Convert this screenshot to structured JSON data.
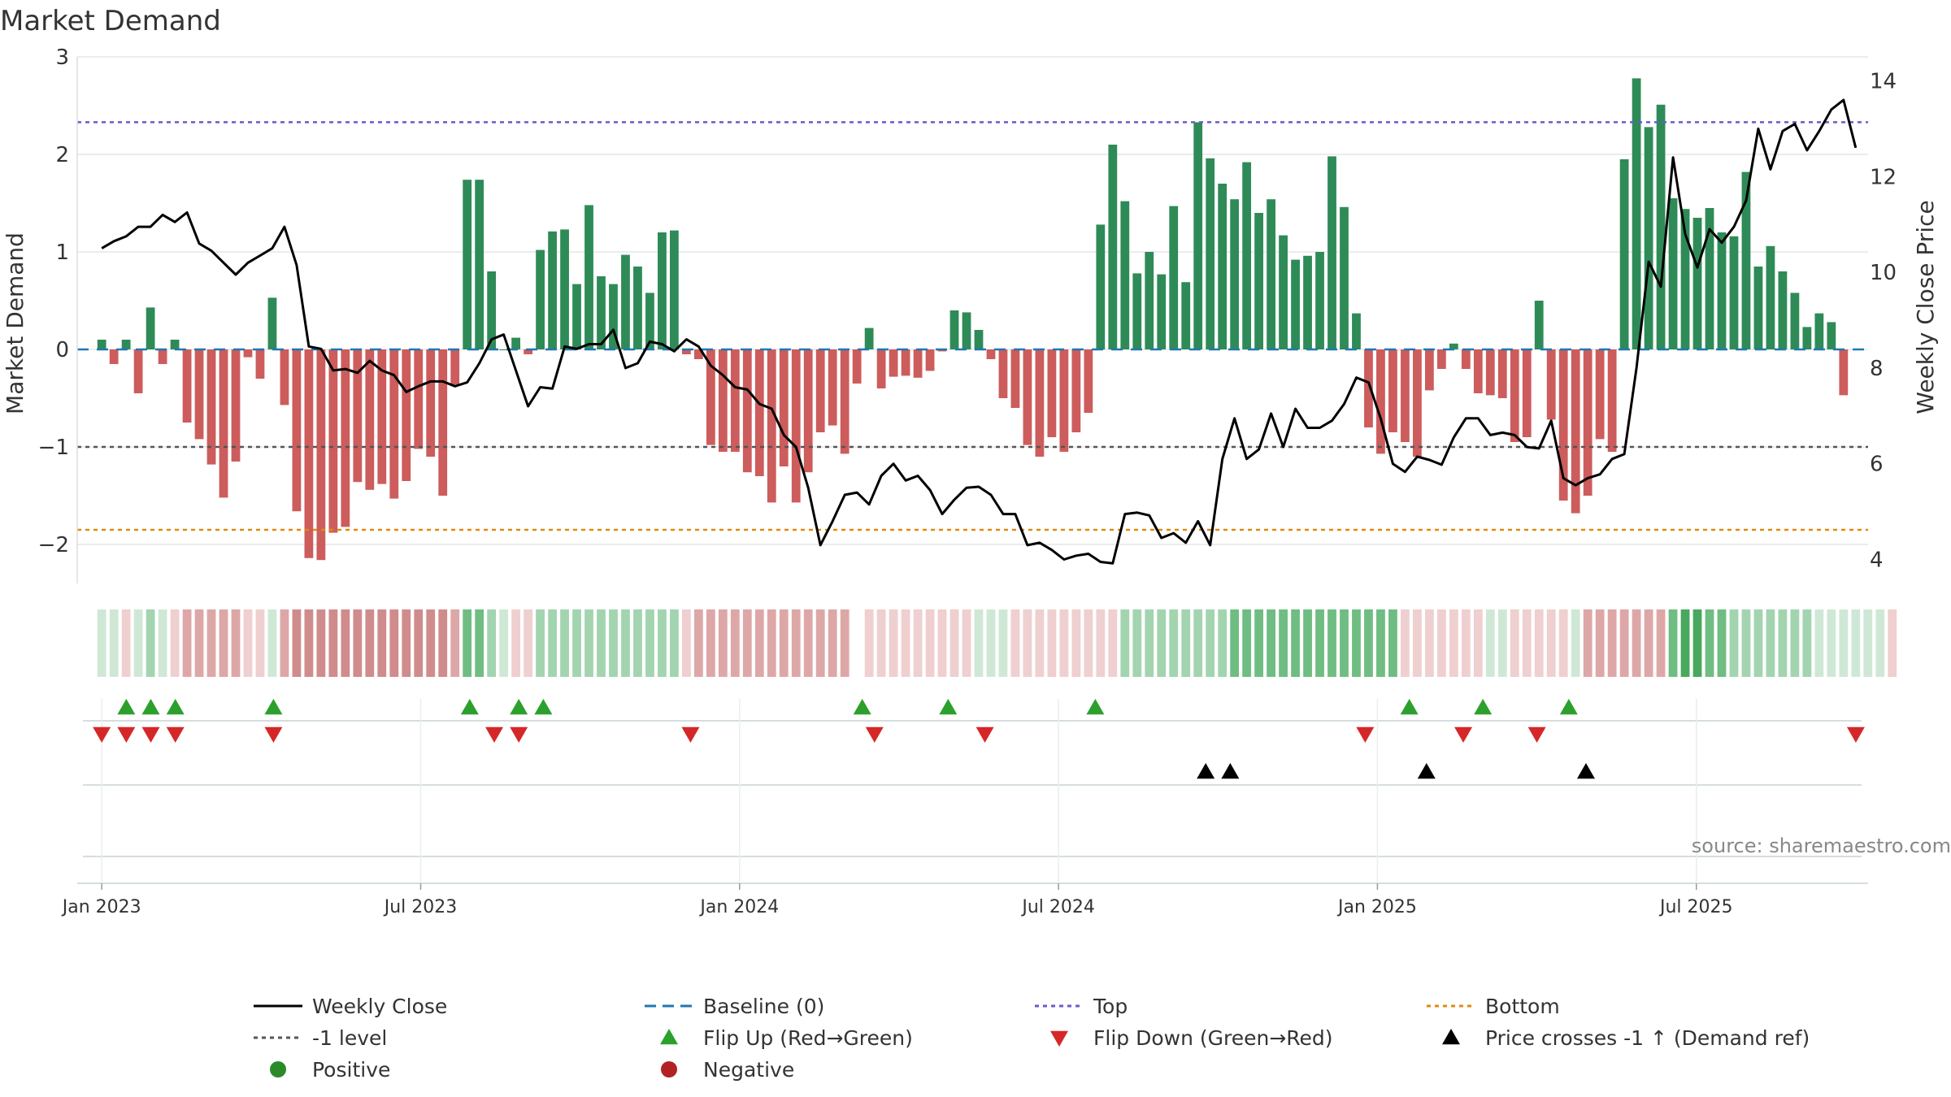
{
  "chart_data": {
    "type": "bar",
    "title": "Market Demand",
    "ylabel": "Market Demand",
    "ylabel_right": "Weekly Close Price",
    "ylim": [
      -2.4,
      3.0
    ],
    "ylim_right": [
      3.5,
      14.5
    ],
    "yticks": [
      "3",
      "2",
      "1",
      "0",
      "−1",
      "−2"
    ],
    "yticks_right": [
      "14",
      "12",
      "10",
      "8",
      "6",
      "4"
    ],
    "x_range": [
      -1,
      72
    ],
    "x_ticks": [
      {
        "week": 0,
        "label": "Jan 2023"
      },
      {
        "week": 13,
        "label": "Jul 2023"
      },
      {
        "week": 26,
        "label": "Jan 2024"
      },
      {
        "week": 39,
        "label": "Jul 2024"
      },
      {
        "week": 52,
        "label": "Jan 2025"
      },
      {
        "week": 65,
        "label": "Jul 2025"
      }
    ],
    "reference_lines": {
      "baseline": 0,
      "top": 2.33,
      "minus_one": -1.0,
      "bottom": -1.85
    },
    "demand": [
      0.1,
      -0.15,
      0.1,
      -0.45,
      0.43,
      -0.15,
      0.1,
      -0.75,
      -0.92,
      -1.18,
      -1.52,
      -1.15,
      -0.08,
      -0.3,
      0.53,
      -0.57,
      -1.66,
      -2.14,
      -2.16,
      -1.88,
      -1.82,
      -1.36,
      -1.44,
      -1.38,
      -1.53,
      -1.35,
      -1.02,
      -1.1,
      -1.5,
      -0.36,
      1.74,
      1.74,
      0.8,
      0.0,
      0.12,
      -0.05,
      1.02,
      1.21,
      1.23,
      0.67,
      1.48,
      0.75,
      0.67,
      0.97,
      0.85,
      0.58,
      1.2,
      1.22,
      -0.05,
      -0.1,
      -0.98,
      -1.05,
      -1.05,
      -1.26,
      -1.3,
      -1.57,
      -1.2,
      -1.57,
      -1.26,
      -0.85,
      -0.78,
      -1.07,
      -0.35,
      0.22,
      -0.4,
      -0.28,
      -0.27,
      -0.29,
      -0.22,
      -0.02,
      0.4,
      0.38,
      0.2,
      -0.1,
      -0.5,
      -0.6,
      -0.98,
      -1.1,
      -0.9,
      -1.05,
      -0.85,
      -0.65,
      1.28,
      2.1,
      1.52,
      0.78,
      1.0,
      0.77,
      1.47,
      0.69,
      2.33,
      1.96,
      1.7,
      1.54,
      1.92,
      1.4,
      1.54,
      1.17,
      0.92,
      0.96,
      1.0,
      1.98,
      1.46,
      0.37,
      -0.8,
      -1.07,
      -0.85,
      -0.95,
      -1.1,
      -0.42,
      -0.2,
      0.06,
      -0.2,
      -0.45,
      -0.47,
      -0.5,
      -0.95,
      -0.9,
      0.5,
      -0.72,
      -1.55,
      -1.68,
      -1.5,
      -0.92,
      -1.05,
      1.95,
      2.78,
      2.28,
      2.51,
      1.55,
      1.44,
      1.35,
      1.45,
      1.2,
      1.16,
      1.82,
      0.85,
      1.06,
      0.8,
      0.58,
      0.23,
      0.37,
      0.28,
      -0.47
    ],
    "weekly_close": [
      10.5,
      10.65,
      10.75,
      10.95,
      10.95,
      11.2,
      11.05,
      11.25,
      10.6,
      10.45,
      10.2,
      9.95,
      10.2,
      10.35,
      10.5,
      10.95,
      10.15,
      8.45,
      8.4,
      7.95,
      7.98,
      7.9,
      8.15,
      7.95,
      7.85,
      7.5,
      7.62,
      7.72,
      7.72,
      7.62,
      7.7,
      8.1,
      8.6,
      8.7,
      7.95,
      7.2,
      7.6,
      7.57,
      8.45,
      8.4,
      8.5,
      8.5,
      8.8,
      8.0,
      8.1,
      8.55,
      8.5,
      8.35,
      8.6,
      8.45,
      8.05,
      7.85,
      7.6,
      7.55,
      7.25,
      7.15,
      6.6,
      6.35,
      5.5,
      4.3,
      4.8,
      5.35,
      5.4,
      5.15,
      5.75,
      6.0,
      5.65,
      5.75,
      5.45,
      4.95,
      5.25,
      5.5,
      5.52,
      5.35,
      4.95,
      4.95,
      4.3,
      4.35,
      4.2,
      4.0,
      4.08,
      4.12,
      3.95,
      3.92,
      4.95,
      4.98,
      4.92,
      4.45,
      4.55,
      4.35,
      4.8,
      4.3,
      6.1,
      6.95,
      6.1,
      6.3,
      7.05,
      6.35,
      7.15,
      6.75,
      6.75,
      6.9,
      7.25,
      7.8,
      7.7,
      6.95,
      6.0,
      5.83,
      6.15,
      6.08,
      5.98,
      6.55,
      6.95,
      6.95,
      6.6,
      6.65,
      6.6,
      6.35,
      6.32,
      6.9,
      5.7,
      5.55,
      5.7,
      5.78,
      6.1,
      6.2,
      8.0,
      10.22,
      9.7,
      12.4,
      10.8,
      10.1,
      10.9,
      10.62,
      10.95,
      11.5,
      13.0,
      12.15,
      12.95,
      13.1,
      12.55,
      12.95,
      13.4,
      13.6,
      12.6
    ],
    "flip_up_weeks": [
      1,
      2,
      3,
      7,
      15,
      17,
      18,
      31,
      34.5,
      40.5,
      53.3,
      56.3,
      59.8
    ],
    "flip_down_weeks": [
      0,
      1,
      2,
      3,
      7,
      16,
      17,
      24,
      31.5,
      36,
      51.5,
      55.5,
      58.5,
      71.5
    ],
    "price_cross_weeks": [
      45,
      46,
      54,
      60.5
    ],
    "weekly_class": [
      "pos1",
      "pos1",
      "neg1",
      "pos1",
      "pos2",
      "pos1",
      "neg1",
      "neg2",
      "neg2",
      "neg2",
      "neg2",
      "neg2",
      "neg1",
      "neg1",
      "pos1",
      "neg2",
      "neg3",
      "neg3",
      "neg3",
      "neg3",
      "neg3",
      "neg3",
      "neg3",
      "neg3",
      "neg3",
      "neg3",
      "neg3",
      "neg3",
      "neg3",
      "neg2",
      "pos3",
      "pos3",
      "pos2",
      "pos1",
      "neg1",
      "neg1",
      "pos2",
      "pos2",
      "pos2",
      "pos2",
      "pos2",
      "pos2",
      "pos2",
      "pos2",
      "pos2",
      "pos2",
      "pos2",
      "pos2",
      "neg1",
      "neg2",
      "neg2",
      "neg2",
      "neg2",
      "neg2",
      "neg2",
      "neg2",
      "neg2",
      "neg2",
      "neg2",
      "neg2",
      "neg2",
      "neg2",
      "gap",
      "neg1",
      "neg1",
      "neg1",
      "neg1",
      "neg1",
      "neg1",
      "neg1",
      "neg1",
      "neg1",
      "pos1",
      "pos1",
      "pos1",
      "neg1",
      "neg1",
      "neg1",
      "neg1",
      "neg1",
      "neg1",
      "neg1",
      "neg1",
      "neg1",
      "pos2",
      "pos2",
      "pos2",
      "pos2",
      "pos2",
      "pos2",
      "pos2",
      "pos2",
      "pos2",
      "pos3",
      "pos3",
      "pos3",
      "pos3",
      "pos3",
      "pos3",
      "pos3",
      "pos3",
      "pos3",
      "pos3",
      "pos3",
      "pos3",
      "pos3",
      "pos3",
      "neg1",
      "neg1",
      "neg1",
      "neg1",
      "neg1",
      "neg1",
      "neg1",
      "pos1",
      "pos1",
      "neg1",
      "neg1",
      "neg1",
      "neg1",
      "neg1",
      "pos1",
      "neg2",
      "neg2",
      "neg2",
      "neg2",
      "neg2",
      "neg2",
      "neg2",
      "pos3",
      "pos4",
      "pos4",
      "pos3",
      "pos3",
      "pos2",
      "pos2",
      "pos2",
      "pos2",
      "pos2",
      "pos2",
      "pos2",
      "pos1",
      "pos1",
      "pos1",
      "pos1",
      "pos1",
      "pos1",
      "neg1"
    ],
    "legend": [
      {
        "label": "Weekly Close",
        "kind": "line-solid",
        "color": "#000000"
      },
      {
        "label": "Baseline (0)",
        "kind": "line-dash",
        "color": "#1f77b4"
      },
      {
        "label": "Top",
        "kind": "line-dot",
        "color": "#6a5acd"
      },
      {
        "label": "Bottom",
        "kind": "line-dot",
        "color": "#e08a10"
      },
      {
        "label": "-1 level",
        "kind": "line-dot",
        "color": "#555555"
      },
      {
        "label": "Flip Up (Red→Green)",
        "kind": "tri-up",
        "color": "#2ca02c"
      },
      {
        "label": "Flip Down (Green→Red)",
        "kind": "tri-down",
        "color": "#d62728"
      },
      {
        "label": "Price crosses -1 ↑ (Demand ref)",
        "kind": "tri-up",
        "color": "#000000"
      },
      {
        "label": "Positive",
        "kind": "dot",
        "color": "#2a8a2a"
      },
      {
        "label": "Negative",
        "kind": "dot",
        "color": "#b22222"
      }
    ],
    "source": "source: sharemaestro.com",
    "colors": {
      "positive_bar": "#2e8b57",
      "negative_bar": "#cd5c5c",
      "price_line": "#000000",
      "baseline": "#1f77b4",
      "top_line": "#6a5acd",
      "bottom_line": "#e08a10",
      "minus_one_line": "#555555",
      "flip_up": "#2ca02c",
      "flip_down": "#d62728",
      "price_cross": "#000000",
      "gridline": "#e6e6e6",
      "axis_text": "#333333",
      "source_text": "#888888"
    }
  }
}
